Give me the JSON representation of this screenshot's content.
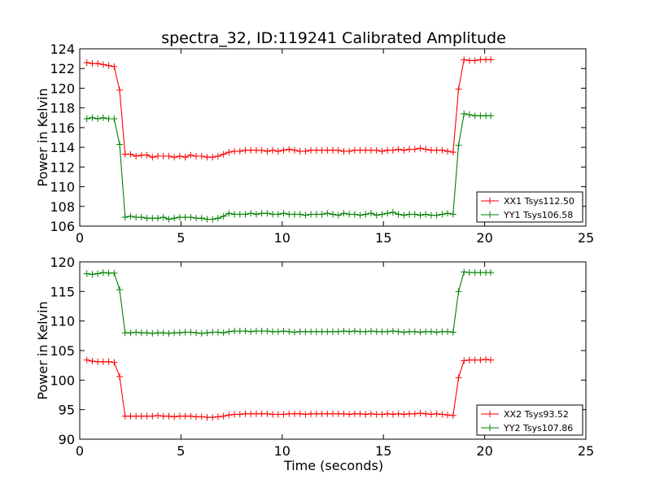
{
  "figure": {
    "title": "spectra_32, ID:119241 Calibrated Amplitude",
    "xlabel": "Time (seconds)"
  },
  "chart_data": [
    {
      "type": "line",
      "ylabel": "Power in Kelvin",
      "xlim": [
        0,
        25
      ],
      "ylim": [
        106,
        124
      ],
      "xticks": [
        0,
        5,
        10,
        15,
        20,
        25
      ],
      "yticks": [
        106,
        108,
        110,
        112,
        114,
        116,
        118,
        120,
        122,
        124
      ],
      "legend_position": "lower-right",
      "grid": false,
      "x": [
        0.35,
        0.62,
        0.89,
        1.16,
        1.43,
        1.7,
        1.97,
        2.24,
        2.51,
        2.78,
        3.05,
        3.32,
        3.59,
        3.86,
        4.13,
        4.4,
        4.67,
        4.94,
        5.21,
        5.48,
        5.75,
        6.02,
        6.29,
        6.56,
        6.83,
        7.1,
        7.37,
        7.64,
        7.91,
        8.18,
        8.45,
        8.72,
        8.99,
        9.26,
        9.53,
        9.8,
        10.07,
        10.34,
        10.61,
        10.88,
        11.15,
        11.42,
        11.69,
        11.96,
        12.23,
        12.5,
        12.77,
        13.04,
        13.31,
        13.58,
        13.85,
        14.12,
        14.39,
        14.66,
        14.93,
        15.2,
        15.47,
        15.74,
        16.01,
        16.28,
        16.55,
        16.82,
        17.09,
        17.36,
        17.63,
        17.9,
        18.17,
        18.44,
        18.71,
        18.98,
        19.25,
        19.52,
        19.79,
        20.06,
        20.3
      ],
      "series": [
        {
          "name": "XX1 Tsys112.50",
          "color": "#ff0000",
          "values": [
            122.6,
            122.5,
            122.5,
            122.4,
            122.3,
            122.2,
            119.8,
            113.3,
            113.3,
            113.1,
            113.2,
            113.2,
            113.0,
            113.1,
            113.1,
            113.1,
            113.0,
            113.1,
            113.0,
            113.2,
            113.1,
            113.1,
            113.0,
            113.0,
            113.1,
            113.3,
            113.5,
            113.6,
            113.6,
            113.7,
            113.7,
            113.7,
            113.7,
            113.6,
            113.7,
            113.6,
            113.7,
            113.8,
            113.7,
            113.6,
            113.6,
            113.7,
            113.7,
            113.7,
            113.7,
            113.7,
            113.7,
            113.6,
            113.6,
            113.7,
            113.7,
            113.7,
            113.7,
            113.7,
            113.6,
            113.7,
            113.7,
            113.8,
            113.7,
            113.8,
            113.8,
            113.9,
            113.8,
            113.7,
            113.7,
            113.7,
            113.6,
            113.5,
            119.9,
            122.9,
            122.8,
            122.8,
            122.9,
            122.9,
            122.9
          ]
        },
        {
          "name": "YY1 Tsys106.58",
          "color": "#008000",
          "values": [
            116.9,
            117.0,
            116.9,
            117.0,
            116.9,
            116.9,
            114.3,
            106.9,
            107.0,
            106.9,
            106.9,
            106.8,
            106.8,
            106.8,
            106.9,
            106.7,
            106.8,
            106.9,
            106.9,
            106.9,
            106.8,
            106.8,
            106.7,
            106.7,
            106.8,
            107.0,
            107.3,
            107.2,
            107.2,
            107.2,
            107.3,
            107.2,
            107.3,
            107.3,
            107.2,
            107.2,
            107.3,
            107.2,
            107.2,
            107.2,
            107.1,
            107.2,
            107.2,
            107.2,
            107.3,
            107.2,
            107.1,
            107.3,
            107.2,
            107.2,
            107.1,
            107.2,
            107.3,
            107.1,
            107.2,
            107.3,
            107.4,
            107.2,
            107.1,
            107.2,
            107.2,
            107.1,
            107.2,
            107.1,
            107.1,
            107.2,
            107.3,
            107.2,
            114.2,
            117.4,
            117.3,
            117.2,
            117.2,
            117.2,
            117.2
          ]
        }
      ]
    },
    {
      "type": "line",
      "ylabel": "Power in Kelvin",
      "xlim": [
        0,
        25
      ],
      "ylim": [
        90,
        120
      ],
      "xticks": [
        0,
        5,
        10,
        15,
        20,
        25
      ],
      "yticks": [
        90,
        95,
        100,
        105,
        110,
        115,
        120
      ],
      "legend_position": "lower-right",
      "grid": false,
      "x": [
        0.35,
        0.62,
        0.89,
        1.16,
        1.43,
        1.7,
        1.97,
        2.24,
        2.51,
        2.78,
        3.05,
        3.32,
        3.59,
        3.86,
        4.13,
        4.4,
        4.67,
        4.94,
        5.21,
        5.48,
        5.75,
        6.02,
        6.29,
        6.56,
        6.83,
        7.1,
        7.37,
        7.64,
        7.91,
        8.18,
        8.45,
        8.72,
        8.99,
        9.26,
        9.53,
        9.8,
        10.07,
        10.34,
        10.61,
        10.88,
        11.15,
        11.42,
        11.69,
        11.96,
        12.23,
        12.5,
        12.77,
        13.04,
        13.31,
        13.58,
        13.85,
        14.12,
        14.39,
        14.66,
        14.93,
        15.2,
        15.47,
        15.74,
        16.01,
        16.28,
        16.55,
        16.82,
        17.09,
        17.36,
        17.63,
        17.9,
        18.17,
        18.44,
        18.71,
        18.98,
        19.25,
        19.52,
        19.79,
        20.06,
        20.3
      ],
      "series": [
        {
          "name": "XX2 Tsys93.52",
          "color": "#ff0000",
          "values": [
            103.4,
            103.2,
            103.1,
            103.1,
            103.1,
            103.0,
            100.6,
            93.9,
            93.9,
            93.9,
            93.9,
            93.9,
            93.9,
            94.0,
            93.9,
            93.9,
            93.8,
            93.9,
            93.9,
            93.9,
            93.8,
            93.8,
            93.7,
            93.7,
            93.8,
            93.9,
            94.1,
            94.2,
            94.2,
            94.3,
            94.3,
            94.3,
            94.3,
            94.3,
            94.2,
            94.2,
            94.2,
            94.3,
            94.3,
            94.3,
            94.2,
            94.3,
            94.3,
            94.3,
            94.3,
            94.3,
            94.3,
            94.3,
            94.2,
            94.3,
            94.3,
            94.2,
            94.3,
            94.2,
            94.2,
            94.3,
            94.2,
            94.3,
            94.2,
            94.3,
            94.3,
            94.4,
            94.3,
            94.2,
            94.3,
            94.2,
            94.1,
            94.0,
            100.4,
            103.3,
            103.4,
            103.4,
            103.4,
            103.5,
            103.4
          ]
        },
        {
          "name": "YY2 Tsys107.86",
          "color": "#008000",
          "values": [
            118.0,
            117.9,
            118.0,
            118.2,
            118.1,
            118.1,
            115.3,
            108.0,
            108.0,
            108.1,
            108.0,
            108.0,
            107.9,
            108.0,
            108.0,
            107.9,
            108.0,
            108.0,
            108.1,
            108.1,
            108.0,
            107.9,
            108.0,
            108.1,
            108.1,
            108.0,
            108.2,
            108.3,
            108.3,
            108.3,
            108.2,
            108.3,
            108.3,
            108.3,
            108.2,
            108.2,
            108.3,
            108.2,
            108.1,
            108.2,
            108.2,
            108.2,
            108.2,
            108.2,
            108.2,
            108.2,
            108.2,
            108.3,
            108.2,
            108.3,
            108.2,
            108.2,
            108.3,
            108.2,
            108.2,
            108.2,
            108.3,
            108.2,
            108.1,
            108.2,
            108.2,
            108.1,
            108.2,
            108.2,
            108.1,
            108.2,
            108.2,
            108.1,
            115.0,
            118.3,
            118.2,
            118.2,
            118.2,
            118.2,
            118.2
          ]
        }
      ]
    }
  ]
}
